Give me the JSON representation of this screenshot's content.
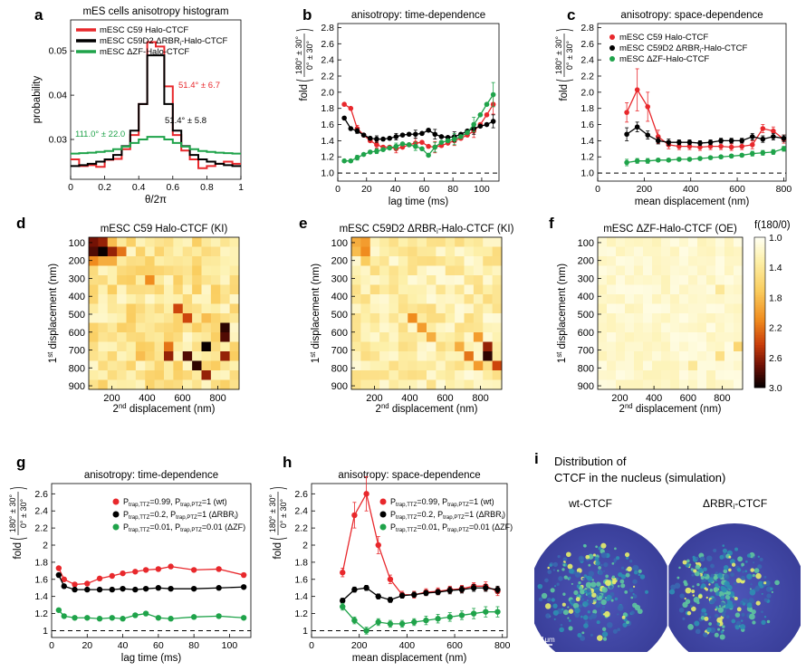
{
  "colors": {
    "red": "#e8282c",
    "black": "#000000",
    "green": "#1fa34a",
    "dash": "#000000"
  },
  "scale_label": "1μm",
  "figure": {
    "a": {
      "letter": "a",
      "chart_data": {
        "type": "line",
        "title": "mES cells anisotropy histogram",
        "xlabel": "θ/2π",
        "ylabel": "probability",
        "xlim": [
          0,
          1
        ],
        "ylim": [
          0.021,
          0.057
        ],
        "xticks": [
          "0",
          "0.2",
          "0.4",
          "0.6",
          "0.8",
          "1"
        ],
        "yticks": [
          "0.03",
          "0.04",
          "0.05"
        ],
        "x": [
          0.025,
          0.075,
          0.125,
          0.175,
          0.225,
          0.275,
          0.325,
          0.375,
          0.425,
          0.475,
          0.525,
          0.575,
          0.625,
          0.675,
          0.725,
          0.775,
          0.825,
          0.875,
          0.925,
          0.975
        ],
        "series": [
          {
            "name": "mESC C59 Halo-CTCF",
            "color": "red",
            "values": [
              0.0255,
              0.024,
              0.0242,
              0.0238,
              0.0254,
              0.0256,
              0.0278,
              0.031,
              0.038,
              0.052,
              0.051,
              0.042,
              0.031,
              0.0275,
              0.0255,
              0.0235,
              0.024,
              0.0245,
              0.025,
              0.0245
            ],
            "annotation": "51.4° ± 6.7"
          },
          {
            "name": "mESC C59D2 ΔRBR<sub>i</sub>-Halo-CTCF",
            "color": "black",
            "values": [
              0.024,
              0.0242,
              0.0245,
              0.025,
              0.0255,
              0.0265,
              0.0285,
              0.032,
              0.038,
              0.049,
              0.049,
              0.038,
              0.032,
              0.0285,
              0.0265,
              0.0255,
              0.025,
              0.0245,
              0.0242,
              0.024
            ],
            "annotation": "51.4° ± 5.8"
          },
          {
            "name": "mESC ΔZF-Halo-CTCF",
            "color": "green",
            "values": [
              0.0268,
              0.0269,
              0.027,
              0.0272,
              0.0274,
              0.0278,
              0.0284,
              0.0292,
              0.03,
              0.0306,
              0.0306,
              0.03,
              0.0292,
              0.0284,
              0.0278,
              0.0274,
              0.0272,
              0.027,
              0.0269,
              0.0268
            ],
            "annotation": "111.0° ± 22.0"
          }
        ]
      }
    },
    "b": {
      "letter": "b",
      "chart_data": {
        "type": "line",
        "title": "anisotropy: time-dependence",
        "xlabel": "lag time (ms)",
        "ylabel": "fold",
        "ylabel_num": "180° ± 30°",
        "ylabel_den": "0° ± 30°",
        "xlim": [
          0,
          112
        ],
        "ylim": [
          0.9,
          2.85
        ],
        "xticks": [
          "0",
          "20",
          "40",
          "60",
          "80",
          "100"
        ],
        "yticks": [
          "1.0",
          "1.2",
          "1.4",
          "1.6",
          "1.8",
          "2.0",
          "2.2",
          "2.4",
          "2.6",
          "2.8"
        ],
        "reference": 1.0,
        "x": [
          4.5,
          9,
          13.5,
          18,
          22.5,
          27,
          31.5,
          36,
          40.5,
          45,
          49.5,
          54,
          58.5,
          63,
          67.5,
          72,
          76.5,
          81,
          85.5,
          90,
          94.5,
          99,
          103.5,
          108
        ],
        "series": [
          {
            "color": "red",
            "values": [
              1.85,
              1.8,
              1.55,
              1.47,
              1.4,
              1.35,
              1.32,
              1.32,
              1.3,
              1.32,
              1.35,
              1.37,
              1.38,
              1.33,
              1.32,
              1.34,
              1.37,
              1.4,
              1.43,
              1.47,
              1.52,
              1.6,
              1.72,
              1.85
            ]
          },
          {
            "color": "black",
            "values": [
              1.68,
              1.55,
              1.52,
              1.47,
              1.43,
              1.42,
              1.42,
              1.43,
              1.45,
              1.47,
              1.48,
              1.48,
              1.49,
              1.53,
              1.48,
              1.45,
              1.44,
              1.45,
              1.48,
              1.52,
              1.55,
              1.58,
              1.6,
              1.64
            ]
          },
          {
            "color": "green",
            "values": [
              1.15,
              1.15,
              1.19,
              1.23,
              1.26,
              1.27,
              1.29,
              1.31,
              1.33,
              1.36,
              1.35,
              1.33,
              1.3,
              1.22,
              1.32,
              1.38,
              1.4,
              1.42,
              1.45,
              1.5,
              1.6,
              1.72,
              1.85,
              1.97
            ]
          }
        ]
      }
    },
    "c": {
      "letter": "c",
      "chart_data": {
        "type": "line",
        "title": "anisotropy: space-dependence",
        "xlabel": "mean displacement (nm)",
        "ylabel": "fold",
        "ylabel_num": "180° ± 30°",
        "ylabel_den": "0° ± 30°",
        "xlim": [
          0,
          810
        ],
        "ylim": [
          0.9,
          2.85
        ],
        "xticks": [
          "0",
          "200",
          "400",
          "600",
          "800"
        ],
        "yticks": [
          "1.0",
          "1.2",
          "1.4",
          "1.6",
          "1.8",
          "2.0",
          "2.2",
          "2.4",
          "2.6",
          "2.8"
        ],
        "reference": 1.0,
        "x": [
          125,
          170,
          215,
          260,
          305,
          350,
          395,
          440,
          485,
          530,
          575,
          620,
          665,
          710,
          755,
          800
        ],
        "series": [
          {
            "name": "mESC C59 Halo-CTCF",
            "color": "red",
            "values": [
              1.75,
              2.03,
              1.82,
              1.45,
              1.35,
              1.33,
              1.33,
              1.32,
              1.33,
              1.33,
              1.32,
              1.33,
              1.35,
              1.55,
              1.52,
              1.42
            ]
          },
          {
            "name": "mESC C59D2 ΔRBR<sub>i</sub>-Halo-CTCF",
            "color": "black",
            "values": [
              1.48,
              1.57,
              1.47,
              1.4,
              1.38,
              1.38,
              1.38,
              1.37,
              1.38,
              1.4,
              1.4,
              1.4,
              1.45,
              1.42,
              1.45,
              1.43
            ]
          },
          {
            "name": "mESC ΔZF-Halo-CTCF",
            "color": "green",
            "values": [
              1.13,
              1.15,
              1.15,
              1.16,
              1.16,
              1.17,
              1.17,
              1.18,
              1.19,
              1.2,
              1.21,
              1.22,
              1.24,
              1.25,
              1.26,
              1.3
            ]
          }
        ]
      }
    },
    "d": {
      "letter": "d",
      "chart_data": {
        "type": "heatmap",
        "title": "mESC C59 Halo-CTCF (KI)",
        "xlabel": "2<sup>nd</sup> displacement (nm)",
        "ylabel": "1<sup>st</sup> displacement (nm)",
        "xticks": [
          "200",
          "400",
          "600",
          "800"
        ],
        "yticks": [
          "100",
          "200",
          "300",
          "400",
          "500",
          "600",
          "700",
          "800",
          "900"
        ],
        "variant": 0,
        "hot": [
          [
            0,
            0,
            2.7
          ],
          [
            0,
            1,
            2.6
          ],
          [
            0,
            2,
            1.8
          ],
          [
            1,
            0,
            2.8
          ],
          [
            1,
            1,
            3.0
          ],
          [
            1,
            2,
            2.6
          ],
          [
            1,
            3,
            2.2
          ],
          [
            2,
            0,
            2.1
          ],
          [
            2,
            1,
            1.9
          ],
          [
            2,
            2,
            1.9
          ],
          [
            3,
            4,
            1.6
          ],
          [
            4,
            6,
            2.1
          ],
          [
            7,
            9,
            2.4
          ],
          [
            8,
            10,
            2.4
          ],
          [
            8,
            12,
            1.8
          ],
          [
            9,
            14,
            2.9
          ],
          [
            10,
            14,
            2.8
          ],
          [
            11,
            12,
            3.0
          ],
          [
            12,
            10,
            2.8
          ],
          [
            12,
            8,
            2.6
          ],
          [
            13,
            11,
            2.9
          ],
          [
            14,
            12,
            2.6
          ],
          [
            12,
            14,
            2.6
          ],
          [
            11,
            8,
            2.2
          ],
          [
            13,
            7,
            1.6
          ],
          [
            12,
            5,
            1.8
          ]
        ]
      }
    },
    "e": {
      "letter": "e",
      "chart_data": {
        "type": "heatmap",
        "title": "mESC C59D2 ΔRBR<sub>i</sub>-Halo-CTCF (KI)",
        "xlabel": "2<sup>nd</sup> displacement (nm)",
        "ylabel": "1<sup>st</sup> displacement (nm)",
        "xticks": [
          "200",
          "400",
          "600",
          "800"
        ],
        "yticks": [
          "100",
          "200",
          "300",
          "400",
          "500",
          "600",
          "700",
          "800",
          "900"
        ],
        "variant": 1,
        "hot": [
          [
            0,
            0,
            1.9
          ],
          [
            0,
            1,
            2.0
          ],
          [
            1,
            0,
            1.8
          ],
          [
            1,
            1,
            2.1
          ],
          [
            2,
            1,
            1.7
          ],
          [
            8,
            6,
            2.1
          ],
          [
            9,
            7,
            2.0
          ],
          [
            10,
            8,
            1.9
          ],
          [
            11,
            14,
            2.6
          ],
          [
            12,
            14,
            2.9
          ],
          [
            13,
            15,
            2.4
          ],
          [
            13,
            13,
            2.0
          ],
          [
            11,
            11,
            1.9
          ],
          [
            10,
            13,
            2.0
          ],
          [
            12,
            12,
            2.2
          ]
        ]
      }
    },
    "f": {
      "letter": "f",
      "chart_data": {
        "type": "heatmap",
        "title": "mESC ΔZF-Halo-CTCF (OE)",
        "xlabel": "2<sup>nd</sup> displacement (nm)",
        "ylabel": "1<sup>st</sup> displacement (nm)",
        "xticks": [
          "200",
          "400",
          "600",
          "800"
        ],
        "yticks": [
          "100",
          "200",
          "300",
          "400",
          "500",
          "600",
          "700",
          "800",
          "900"
        ],
        "variant": 2,
        "hot": [
          [
            11,
            15,
            1.6
          ],
          [
            12,
            13,
            1.5
          ],
          [
            5,
            13,
            1.4
          ],
          [
            13,
            10,
            1.4
          ]
        ]
      }
    },
    "colorbar": {
      "title": "f(180/0)",
      "ticks": [
        "1.0",
        "1.4",
        "1.8",
        "2.2",
        "2.6",
        "3.0"
      ],
      "range": [
        1.0,
        3.0
      ]
    },
    "g": {
      "letter": "g",
      "chart_data": {
        "type": "line",
        "title": "anisotropy: time-dependence",
        "xlabel": "lag time (ms)",
        "ylabel": "fold",
        "ylabel_num": "180° ± 30°",
        "ylabel_den": "0° ± 30°",
        "xlim": [
          0,
          112
        ],
        "ylim": [
          0.92,
          2.72
        ],
        "xticks": [
          "0",
          "20",
          "40",
          "60",
          "80",
          "100"
        ],
        "yticks": [
          "1",
          "1.2",
          "1.4",
          "1.6",
          "1.8",
          "2",
          "2.2",
          "2.4",
          "2.6"
        ],
        "reference": 1.0,
        "x": [
          4,
          7,
          13,
          20,
          27,
          34,
          40,
          47,
          53,
          60,
          67,
          80,
          94,
          108
        ],
        "series": [
          {
            "name": "P<sub>trap,TTZ</sub>=0.99, P<sub>trap,PTZ</sub>=1 (wt)",
            "color": "red",
            "values": [
              1.73,
              1.6,
              1.54,
              1.55,
              1.61,
              1.64,
              1.67,
              1.69,
              1.71,
              1.72,
              1.75,
              1.71,
              1.72,
              1.65
            ]
          },
          {
            "name": "P<sub>trap,TTZ</sub>=0.2, P<sub>trap,PTZ</sub>=1 (ΔRBR<sub>i</sub>)",
            "color": "black",
            "values": [
              1.65,
              1.52,
              1.48,
              1.48,
              1.48,
              1.48,
              1.49,
              1.48,
              1.49,
              1.5,
              1.49,
              1.49,
              1.5,
              1.51
            ]
          },
          {
            "name": "P<sub>trap,TTZ</sub>=0.01, P<sub>trap,PTZ</sub>=0.01 (ΔZF)",
            "color": "green",
            "values": [
              1.24,
              1.17,
              1.15,
              1.15,
              1.14,
              1.15,
              1.14,
              1.18,
              1.2,
              1.15,
              1.14,
              1.16,
              1.17,
              1.15
            ]
          }
        ]
      }
    },
    "h": {
      "letter": "h",
      "chart_data": {
        "type": "line",
        "title": "anisotropy: space-dependence",
        "xlabel": "mean displacement (nm)",
        "ylabel": "fold",
        "ylabel_num": "180° ± 30°",
        "ylabel_den": "0° ± 30°",
        "xlim": [
          0,
          820
        ],
        "ylim": [
          0.92,
          2.72
        ],
        "xticks": [
          "0",
          "200",
          "400",
          "600",
          "800"
        ],
        "yticks": [
          "1",
          "1.2",
          "1.4",
          "1.6",
          "1.8",
          "2",
          "2.2",
          "2.4",
          "2.6"
        ],
        "reference": 1.0,
        "x": [
          130,
          180,
          230,
          280,
          330,
          380,
          430,
          480,
          530,
          580,
          630,
          680,
          730,
          780
        ],
        "series": [
          {
            "name": "P<sub>trap,TTZ</sub>=0.99, P<sub>trap,PTZ</sub>=1 (wt)",
            "color": "red",
            "values": [
              1.68,
              2.35,
              2.6,
              2.0,
              1.6,
              1.42,
              1.42,
              1.45,
              1.46,
              1.48,
              1.49,
              1.52,
              1.52,
              1.46
            ]
          },
          {
            "name": "P<sub>trap,TTZ</sub>=0.2, P<sub>trap,PTZ</sub>=1 (ΔRBR<sub>i</sub>)",
            "color": "black",
            "values": [
              1.35,
              1.48,
              1.5,
              1.4,
              1.36,
              1.41,
              1.42,
              1.44,
              1.45,
              1.47,
              1.48,
              1.5,
              1.5,
              1.48
            ]
          },
          {
            "name": "P<sub>trap,TTZ</sub>=0.01, P<sub>trap,PTZ</sub>=0.01 (ΔZF)",
            "color": "green",
            "values": [
              1.28,
              1.12,
              1.0,
              1.1,
              1.08,
              1.08,
              1.1,
              1.12,
              1.14,
              1.16,
              1.18,
              1.2,
              1.22,
              1.22
            ]
          }
        ]
      }
    },
    "i": {
      "letter": "i",
      "title_line1": "Distribution of",
      "title_line2": "CTCF in the nucleus (simulation)",
      "left_label": "wt-CTCF",
      "right_label": "ΔRBR<sub>i</sub>-CTCF"
    }
  }
}
